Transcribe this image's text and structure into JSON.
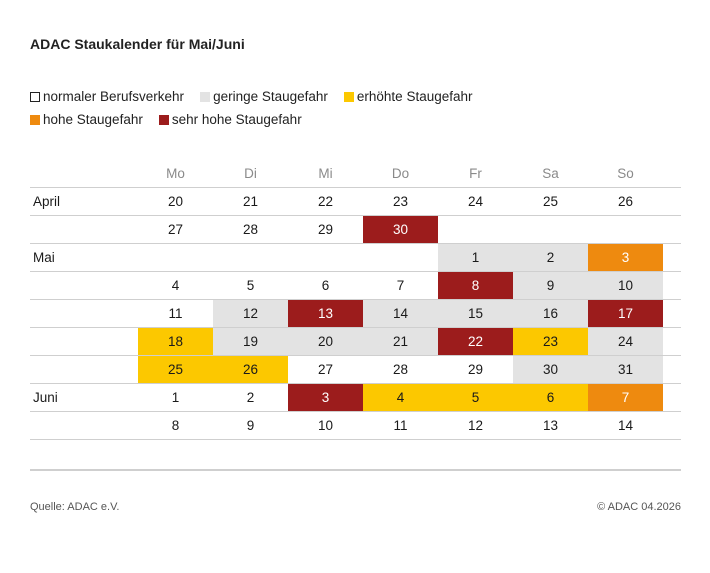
{
  "title": "ADAC Staukalender für Mai/Juni",
  "legend": [
    {
      "label": "normaler Berufsverkehr",
      "level": "normal"
    },
    {
      "label": "geringe Staugefahr",
      "level": "gering"
    },
    {
      "label": "erhöhte Staugefahr",
      "level": "erhoht"
    },
    {
      "label": "hohe Staugefahr",
      "level": "hoch"
    },
    {
      "label": "sehr hohe Staugefahr",
      "level": "sehr-hoch"
    }
  ],
  "colors": {
    "normal": "#ffffff",
    "gering": "#e3e3e3",
    "erhoht": "#fcc800",
    "hoch": "#ee8a0f",
    "sehr-hoch": "#9c1c1c"
  },
  "weekdays": [
    "Mo",
    "Di",
    "Mi",
    "Do",
    "Fr",
    "Sa",
    "So"
  ],
  "rows": [
    {
      "month": "April",
      "days": [
        {
          "d": "20",
          "level": "normal"
        },
        {
          "d": "21",
          "level": "normal"
        },
        {
          "d": "22",
          "level": "normal"
        },
        {
          "d": "23",
          "level": "normal"
        },
        {
          "d": "24",
          "level": "normal"
        },
        {
          "d": "25",
          "level": "normal"
        },
        {
          "d": "26",
          "level": "normal"
        }
      ]
    },
    {
      "month": "",
      "days": [
        {
          "d": "27",
          "level": "normal"
        },
        {
          "d": "28",
          "level": "normal"
        },
        {
          "d": "29",
          "level": "normal"
        },
        {
          "d": "30",
          "level": "sehr-hoch"
        },
        null,
        null,
        null
      ]
    },
    {
      "month": "Mai",
      "days": [
        null,
        null,
        null,
        null,
        {
          "d": "1",
          "level": "gering"
        },
        {
          "d": "2",
          "level": "gering"
        },
        {
          "d": "3",
          "level": "hoch"
        }
      ]
    },
    {
      "month": "",
      "days": [
        {
          "d": "4",
          "level": "normal"
        },
        {
          "d": "5",
          "level": "normal"
        },
        {
          "d": "6",
          "level": "normal"
        },
        {
          "d": "7",
          "level": "normal"
        },
        {
          "d": "8",
          "level": "sehr-hoch"
        },
        {
          "d": "9",
          "level": "gering"
        },
        {
          "d": "10",
          "level": "gering"
        }
      ]
    },
    {
      "month": "",
      "days": [
        {
          "d": "11",
          "level": "normal"
        },
        {
          "d": "12",
          "level": "gering"
        },
        {
          "d": "13",
          "level": "sehr-hoch"
        },
        {
          "d": "14",
          "level": "gering"
        },
        {
          "d": "15",
          "level": "gering"
        },
        {
          "d": "16",
          "level": "gering"
        },
        {
          "d": "17",
          "level": "sehr-hoch"
        }
      ]
    },
    {
      "month": "",
      "days": [
        {
          "d": "18",
          "level": "erhoht"
        },
        {
          "d": "19",
          "level": "gering"
        },
        {
          "d": "20",
          "level": "gering"
        },
        {
          "d": "21",
          "level": "gering"
        },
        {
          "d": "22",
          "level": "sehr-hoch"
        },
        {
          "d": "23",
          "level": "erhoht"
        },
        {
          "d": "24",
          "level": "gering"
        }
      ]
    },
    {
      "month": "",
      "days": [
        {
          "d": "25",
          "level": "erhoht"
        },
        {
          "d": "26",
          "level": "erhoht"
        },
        {
          "d": "27",
          "level": "normal"
        },
        {
          "d": "28",
          "level": "normal"
        },
        {
          "d": "29",
          "level": "normal"
        },
        {
          "d": "30",
          "level": "gering"
        },
        {
          "d": "31",
          "level": "gering"
        }
      ]
    },
    {
      "month": "Juni",
      "days": [
        {
          "d": "1",
          "level": "normal"
        },
        {
          "d": "2",
          "level": "normal"
        },
        {
          "d": "3",
          "level": "sehr-hoch"
        },
        {
          "d": "4",
          "level": "erhoht"
        },
        {
          "d": "5",
          "level": "erhoht"
        },
        {
          "d": "6",
          "level": "erhoht"
        },
        {
          "d": "7",
          "level": "hoch"
        }
      ]
    },
    {
      "month": "",
      "days": [
        {
          "d": "8",
          "level": "normal"
        },
        {
          "d": "9",
          "level": "normal"
        },
        {
          "d": "10",
          "level": "normal"
        },
        {
          "d": "11",
          "level": "normal"
        },
        {
          "d": "12",
          "level": "normal"
        },
        {
          "d": "13",
          "level": "normal"
        },
        {
          "d": "14",
          "level": "normal"
        }
      ]
    }
  ],
  "source": "Quelle: ADAC e.V.",
  "copyright": "© ADAC 04.2026"
}
